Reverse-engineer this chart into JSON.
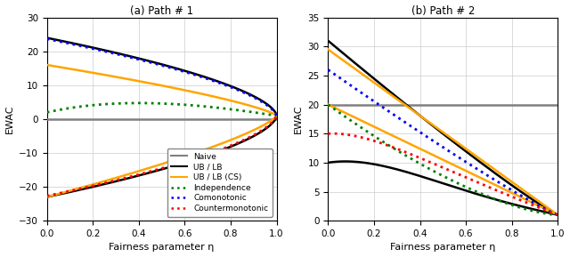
{
  "title1": "(a) Path # 1",
  "title2": "(b) Path # 2",
  "xlabel": "Fairness parameter η",
  "ylabel": "EWAC",
  "ylim1": [
    -30,
    30
  ],
  "ylim2": [
    0,
    35
  ],
  "xlim": [
    0,
    1
  ],
  "xticks": [
    0,
    0.2,
    0.4,
    0.6,
    0.8,
    1
  ],
  "yticks1": [
    -30,
    -20,
    -10,
    0,
    10,
    20,
    30
  ],
  "yticks2": [
    0,
    5,
    10,
    15,
    20,
    25,
    30,
    35
  ],
  "legend_labels": [
    "Naive",
    "UB / LB",
    "UB / LB (CS)",
    "Independence",
    "Comonotonic",
    "Countermonotonic"
  ],
  "colors": {
    "naive": "#808080",
    "ub_lb": "#000000",
    "ub_lb_cs": "#FFA500",
    "independence": "#008000",
    "comonotonic": "#0000FF",
    "countermonotonic": "#FF0000"
  },
  "background": "#ffffff",
  "grid_color": "#cccccc"
}
